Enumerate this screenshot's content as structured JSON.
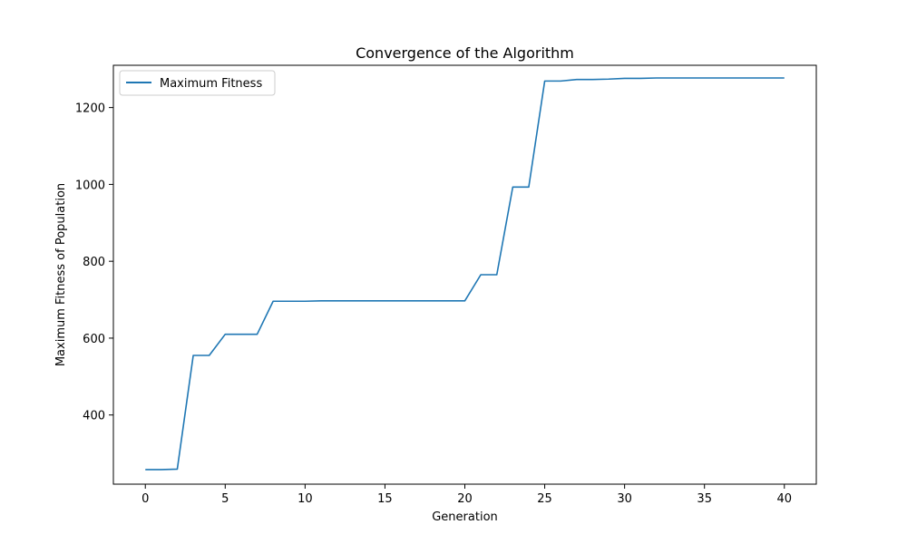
{
  "chart_data": {
    "type": "line",
    "title": "Convergence of the Algorithm",
    "xlabel": "Generation",
    "ylabel": "Maximum Fitness of Population",
    "xlim": [
      -2,
      42
    ],
    "ylim": [
      220,
      1310
    ],
    "xticks": [
      0,
      5,
      10,
      15,
      20,
      25,
      30,
      35,
      40
    ],
    "yticks": [
      400,
      600,
      800,
      1000,
      1200
    ],
    "grid": false,
    "legend_position": "top-left",
    "series": [
      {
        "name": "Maximum Fitness",
        "color": "#1f77b4",
        "x": [
          0,
          1,
          2,
          3,
          4,
          5,
          6,
          7,
          8,
          9,
          10,
          11,
          12,
          13,
          14,
          15,
          16,
          17,
          18,
          19,
          20,
          21,
          22,
          23,
          24,
          25,
          26,
          27,
          28,
          29,
          30,
          31,
          32,
          33,
          34,
          35,
          36,
          37,
          38,
          39,
          40
        ],
        "y": [
          258,
          258,
          259,
          555,
          555,
          610,
          610,
          610,
          696,
          696,
          696,
          697,
          697,
          697,
          697,
          697,
          697,
          697,
          697,
          697,
          697,
          765,
          765,
          993,
          993,
          1269,
          1269,
          1273,
          1273,
          1274,
          1276,
          1276,
          1277,
          1277,
          1277,
          1277,
          1277,
          1277,
          1277,
          1277,
          1277
        ]
      }
    ]
  }
}
